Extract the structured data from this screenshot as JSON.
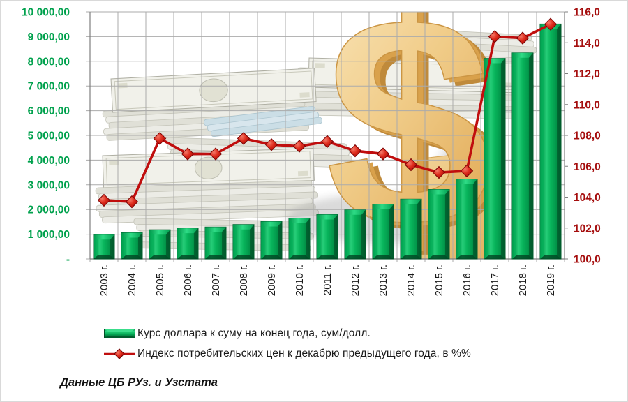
{
  "source_note": "Данные ЦБ РУз. и Узстата",
  "watermark": "money-stacks-and-gold-dollar-sign-watermark",
  "colors": {
    "bar_fill": "#02A552",
    "bar_edge_dark": "#015E2E",
    "bar_highlight": "#2BD57F",
    "line": "#C00E0E",
    "marker_fill": "#C01212",
    "left_axis_text": "#00A14D",
    "right_axis_text": "#A50E0E",
    "gridline": "#ABABAB",
    "axis_line": "#7F7F7F",
    "category_text": "#1A1A1A",
    "gold": "#EFC375"
  },
  "chart_data": {
    "type": "combo-bar-line",
    "categories": [
      "2003 г.",
      "2004 г.",
      "2005 г.",
      "2006 г.",
      "2007 г.",
      "2008 г.",
      "2009 г.",
      "2010 г.",
      "2011 г.",
      "2012 г.",
      "2013 г.",
      "2014 г.",
      "2015 г.",
      "2016 г.",
      "2017 г.",
      "2018 г.",
      "2019 г."
    ],
    "series": [
      {
        "name": "Курс доллара к суму на конец года, сум/долл.",
        "type": "bar",
        "axis": "left",
        "values": [
          980,
          1058,
          1180,
          1240,
          1290,
          1393,
          1511,
          1640,
          1795,
          1984,
          2202,
          2422,
          2810,
          3231,
          8120,
          8340,
          9508
        ]
      },
      {
        "name": "Индекс потребительских цен к декабрю предыдущего года, в %%",
        "type": "line",
        "axis": "right",
        "values": [
          103.8,
          103.7,
          107.8,
          106.8,
          106.8,
          107.8,
          107.4,
          107.3,
          107.6,
          107.0,
          106.8,
          106.1,
          105.6,
          105.7,
          114.4,
          114.3,
          115.2
        ]
      }
    ],
    "left_axis": {
      "min": 0,
      "max": 10000,
      "step": 1000,
      "tick_labels": [
        "10 000,00",
        "9 000,00",
        "8 000,00",
        "7 000,00",
        "6 000,00",
        "5 000,00",
        "4 000,00",
        "3 000,00",
        "2 000,00",
        "1 000,00",
        "-"
      ]
    },
    "right_axis": {
      "min": 100,
      "max": 116,
      "step": 2,
      "tick_labels": [
        "116,0",
        "114,0",
        "112,0",
        "110,0",
        "108,0",
        "106,0",
        "104,0",
        "102,0",
        "100,0"
      ]
    },
    "grid": true,
    "legend_position": "bottom-left"
  }
}
